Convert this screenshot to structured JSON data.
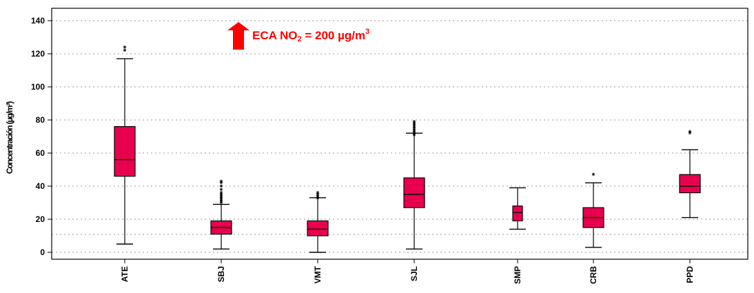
{
  "chart_data": {
    "type": "box",
    "ylabel": "Concentración (µg/m³)",
    "ylim": [
      -3,
      145
    ],
    "yticks": [
      0,
      20,
      40,
      60,
      80,
      100,
      120,
      140
    ],
    "grid": "horizontal dotted",
    "annotation": {
      "prefix": "ECA NO",
      "sub": "2",
      "mid": " = 200 µg/m",
      "sup": "3",
      "color": "#ff0000"
    },
    "box_color": "#e8004f",
    "categories": [
      "ATE",
      "SBJ",
      "VMT",
      "SJL",
      "SMP",
      "CRB",
      "PPD"
    ],
    "boxes": [
      {
        "name": "ATE",
        "whisker_low": 5,
        "q1": 46,
        "median": 56,
        "q3": 76,
        "whisker_high": 117,
        "outliers": [
          122,
          124
        ]
      },
      {
        "name": "SBJ",
        "whisker_low": 2,
        "q1": 11,
        "median": 15,
        "q3": 19,
        "whisker_high": 29,
        "outliers": [
          30,
          31,
          32,
          33,
          34,
          35,
          36,
          38,
          40,
          42,
          43
        ]
      },
      {
        "name": "VMT",
        "whisker_low": 0,
        "q1": 10,
        "median": 14,
        "q3": 19,
        "whisker_high": 33,
        "outliers": [
          33,
          34,
          35,
          36
        ]
      },
      {
        "name": "SJL",
        "whisker_low": 2,
        "q1": 27,
        "median": 35,
        "q3": 45,
        "whisker_high": 72,
        "outliers": [
          71,
          72,
          73,
          74,
          75,
          76,
          77,
          78,
          79
        ]
      },
      {
        "name": "SMP",
        "whisker_low": 14,
        "q1": 19,
        "median": 24,
        "q3": 28,
        "whisker_high": 39,
        "outliers": []
      },
      {
        "name": "CRB",
        "whisker_low": 3,
        "q1": 15,
        "median": 21,
        "q3": 27,
        "whisker_high": 42,
        "outliers": [
          47
        ]
      },
      {
        "name": "PPD",
        "whisker_low": 21,
        "q1": 36,
        "median": 40,
        "q3": 47,
        "whisker_high": 62,
        "outliers": [
          72,
          73
        ]
      }
    ]
  }
}
